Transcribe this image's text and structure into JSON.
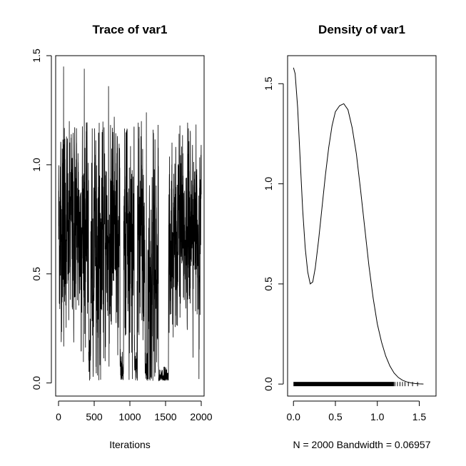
{
  "chart_data": [
    {
      "type": "line",
      "title": "Trace of var1",
      "xlabel": "Iterations",
      "ylabel": "",
      "xlim": [
        -40,
        2040
      ],
      "ylim": [
        -0.06,
        1.5
      ],
      "x_ticks": [
        "0",
        "500",
        "1000",
        "1500",
        "2000"
      ],
      "x_tick_values": [
        0,
        500,
        1000,
        1500,
        2000
      ],
      "y_ticks": [
        "0.0",
        "0.5",
        "1.0",
        "1.5"
      ],
      "y_tick_values": [
        0,
        0.5,
        1.0,
        1.5
      ],
      "n_iterations": 2000,
      "series": [
        {
          "values_summary": "noisy trace mostly between 0.3 and 1.1 with spikes up to 1.45 and dips to 0.0 near iterations 430, 880, 1080, 1220 and 1400-1500",
          "regimes": [
            {
              "x": [
                0,
                420
              ],
              "level": 0.72,
              "spread": 0.2
            },
            {
              "x": [
                420,
                450
              ],
              "level": 0.08,
              "spread": 0.06
            },
            {
              "x": [
                450,
                860
              ],
              "level": 0.65,
              "spread": 0.22
            },
            {
              "x": [
                860,
                910
              ],
              "level": 0.04,
              "spread": 0.04
            },
            {
              "x": [
                910,
                1060
              ],
              "level": 0.65,
              "spread": 0.22
            },
            {
              "x": [
                1060,
                1100
              ],
              "level": 0.04,
              "spread": 0.04
            },
            {
              "x": [
                1100,
                1210
              ],
              "level": 0.6,
              "spread": 0.22
            },
            {
              "x": [
                1210,
                1250
              ],
              "level": 0.06,
              "spread": 0.05
            },
            {
              "x": [
                1250,
                1400
              ],
              "level": 0.55,
              "spread": 0.25
            },
            {
              "x": [
                1400,
                1540
              ],
              "level": 0.02,
              "spread": 0.02
            },
            {
              "x": [
                1540,
                2000
              ],
              "level": 0.68,
              "spread": 0.18
            }
          ],
          "spikes": [
            {
              "x": 70,
              "y": 1.45
            },
            {
              "x": 150,
              "y": 1.2
            },
            {
              "x": 360,
              "y": 1.44
            },
            {
              "x": 700,
              "y": 1.36
            },
            {
              "x": 780,
              "y": 1.22
            },
            {
              "x": 1160,
              "y": 1.2
            },
            {
              "x": 1230,
              "y": 1.24
            },
            {
              "x": 1700,
              "y": 1.18
            }
          ]
        }
      ]
    },
    {
      "type": "line",
      "title": "Density of var1",
      "xlabel": "N = 2000   Bandwidth = 0.06957",
      "ylabel": "",
      "xlim": [
        -0.07,
        1.7
      ],
      "ylim": [
        -0.06,
        1.64
      ],
      "x_ticks": [
        "0.0",
        "0.5",
        "1.0",
        "1.5"
      ],
      "x_tick_values": [
        0,
        0.5,
        1.0,
        1.5
      ],
      "y_ticks": [
        "0.0",
        "0.5",
        "1.0",
        "1.5"
      ],
      "y_tick_values": [
        0,
        0.5,
        1.0,
        1.5
      ],
      "series": [
        {
          "x": [
            0.0,
            0.02,
            0.05,
            0.08,
            0.11,
            0.14,
            0.17,
            0.2,
            0.23,
            0.26,
            0.3,
            0.34,
            0.38,
            0.42,
            0.46,
            0.5,
            0.55,
            0.6,
            0.65,
            0.7,
            0.75,
            0.8,
            0.85,
            0.9,
            0.95,
            1.0,
            1.05,
            1.1,
            1.15,
            1.2,
            1.25,
            1.3,
            1.35,
            1.4,
            1.45,
            1.5,
            1.55
          ],
          "y": [
            1.58,
            1.55,
            1.38,
            1.12,
            0.87,
            0.68,
            0.56,
            0.5,
            0.51,
            0.58,
            0.72,
            0.88,
            1.04,
            1.18,
            1.29,
            1.36,
            1.39,
            1.4,
            1.37,
            1.28,
            1.15,
            0.97,
            0.78,
            0.59,
            0.43,
            0.3,
            0.21,
            0.14,
            0.09,
            0.055,
            0.033,
            0.019,
            0.011,
            0.006,
            0.003,
            0.001,
            0.0
          ]
        }
      ],
      "rug": {
        "range": [
          0.0,
          1.2
        ],
        "tail": [
          1.21,
          1.24,
          1.27,
          1.3,
          1.33,
          1.37,
          1.42,
          1.48
        ]
      }
    }
  ]
}
